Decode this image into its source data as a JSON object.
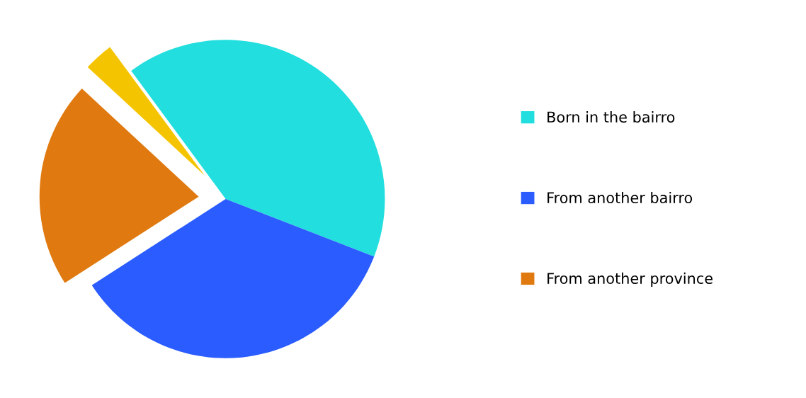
{
  "chart_data": {
    "type": "pie",
    "categories": [
      "Born in the bairro",
      "From another bairro",
      "From another province",
      null
    ],
    "values": [
      41,
      35,
      21,
      3
    ],
    "colors": [
      "#22dede",
      "#2a5cff",
      "#e07a10",
      "#f5c400"
    ],
    "legend": "right"
  }
}
